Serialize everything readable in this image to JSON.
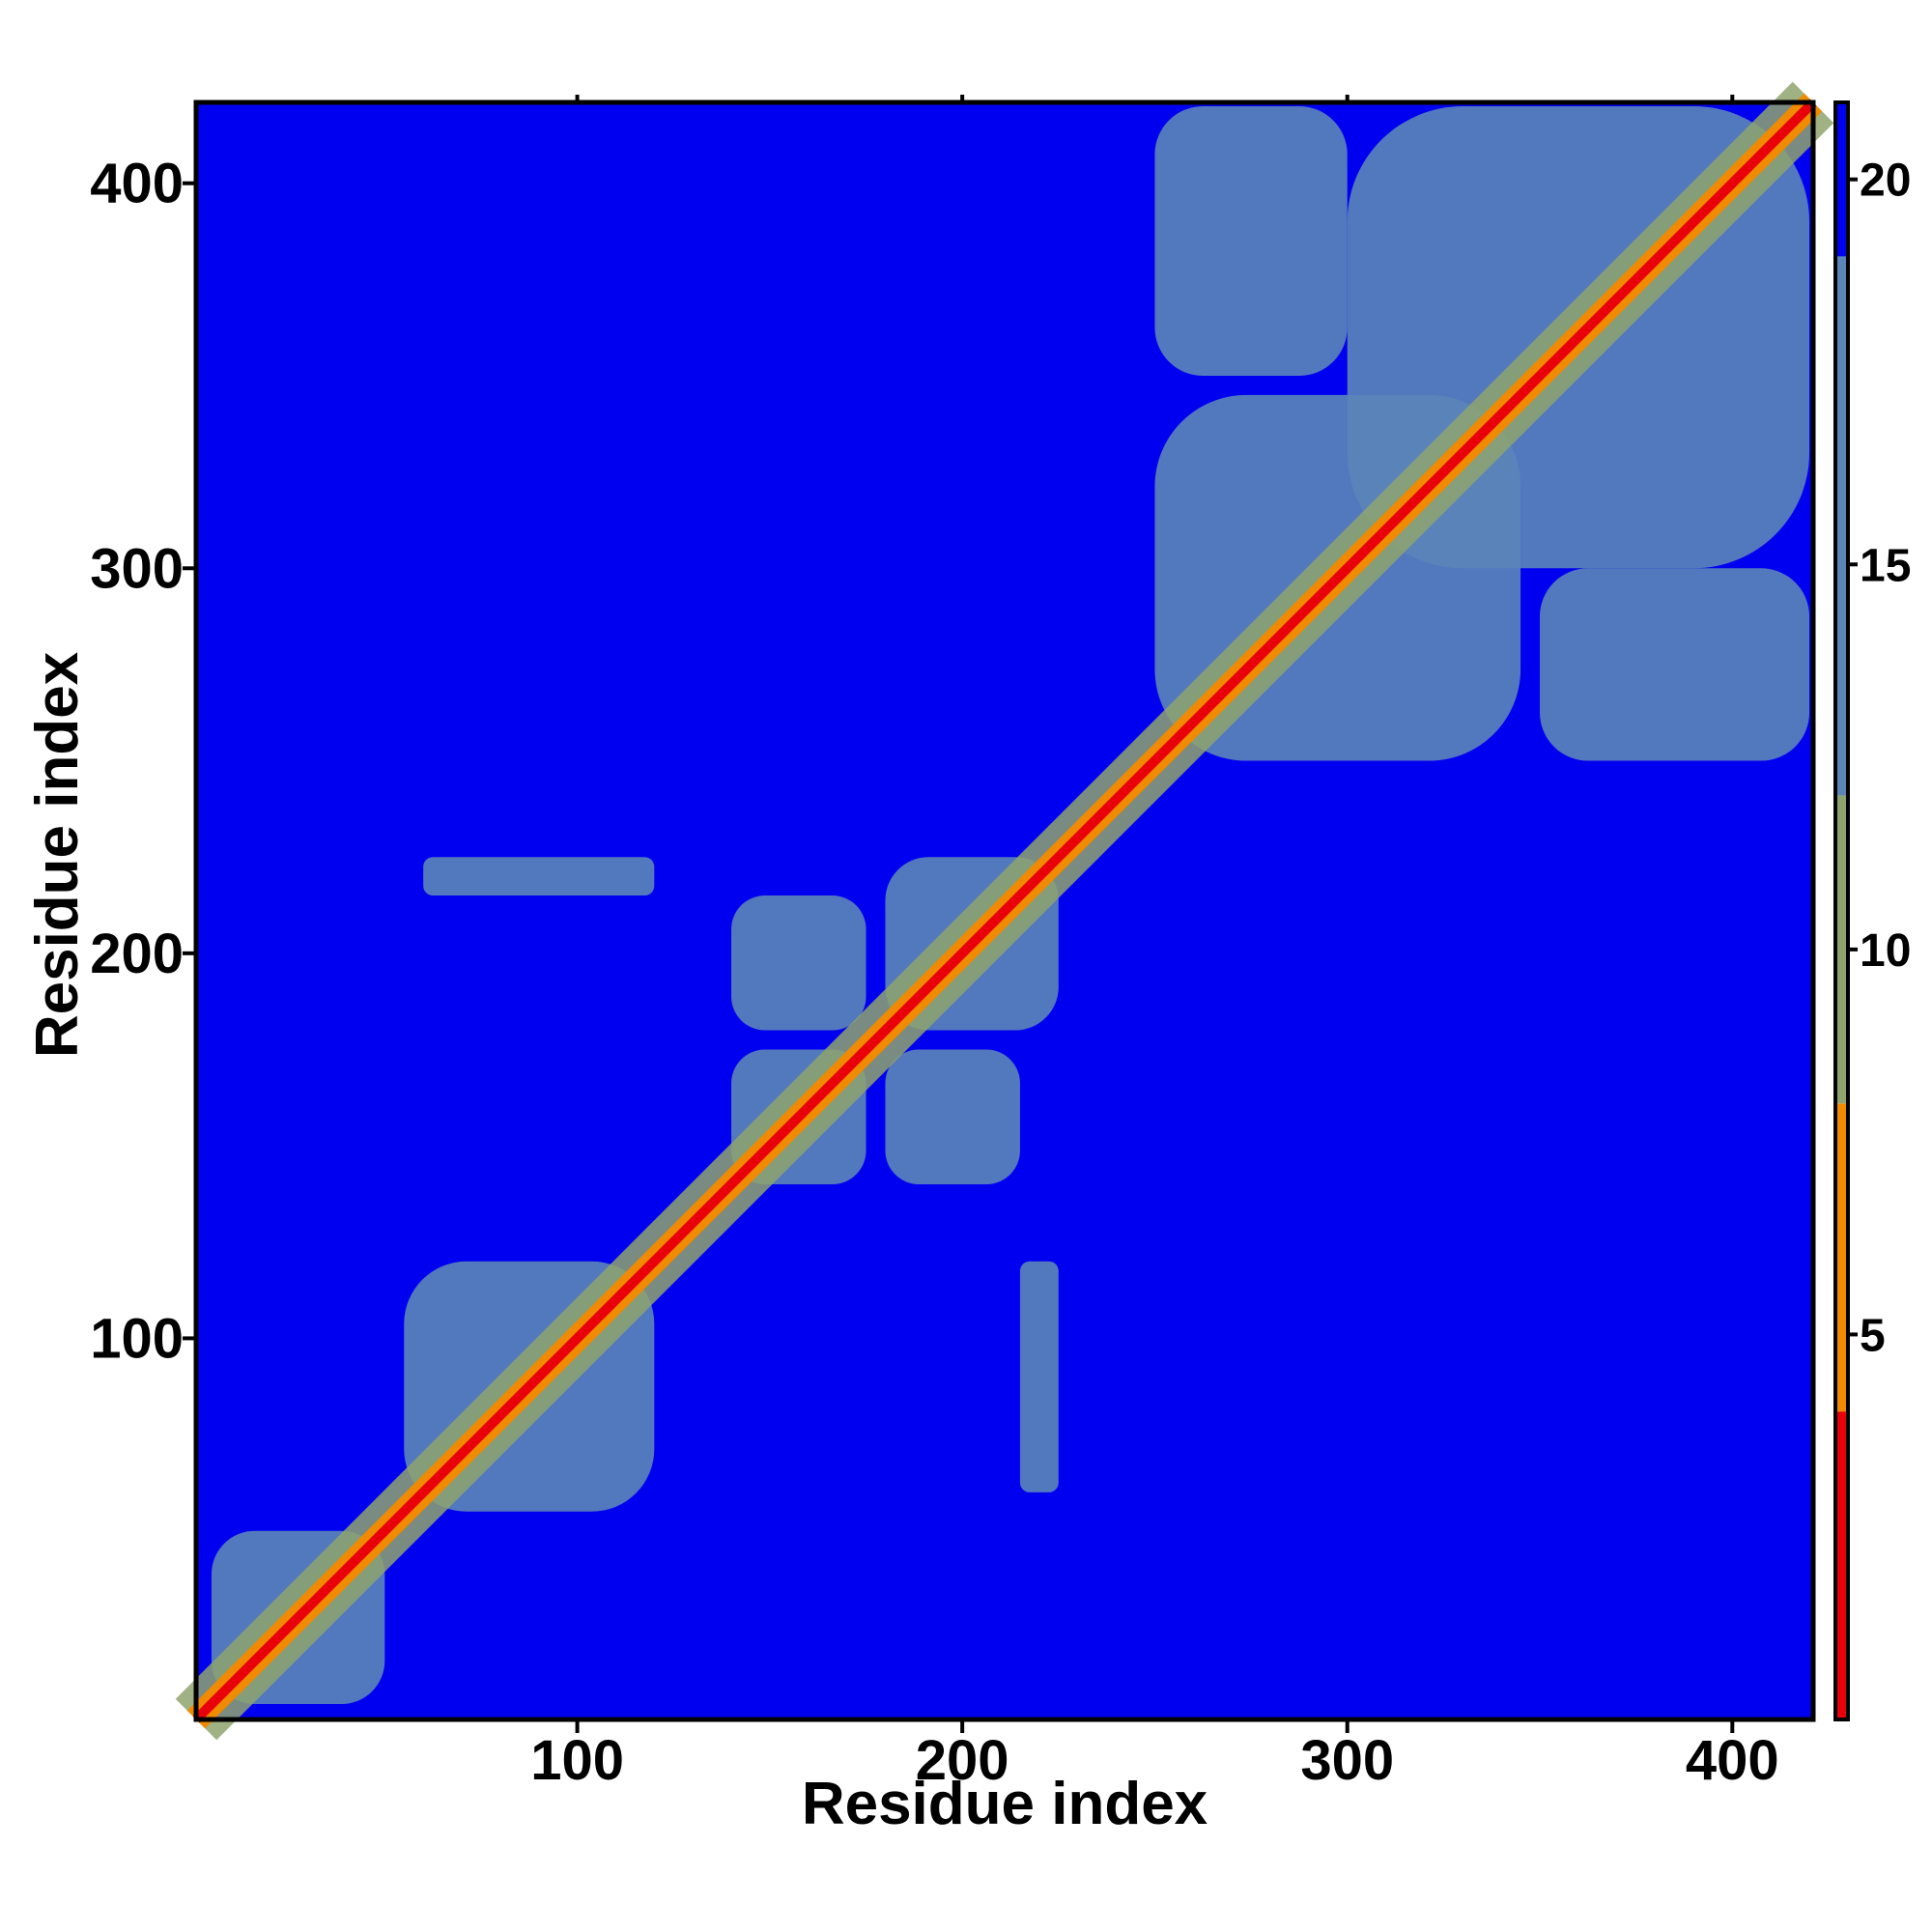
{
  "chart_data": {
    "type": "heatmap",
    "title": "",
    "xlabel": "Residue index",
    "ylabel": "Residue index",
    "xlim": [
      1,
      421
    ],
    "ylim": [
      1,
      421
    ],
    "x_ticks": [
      100,
      200,
      300,
      400
    ],
    "y_ticks": [
      100,
      200,
      300,
      400
    ],
    "x_tick_labels": [
      "100",
      "200",
      "300",
      "400"
    ],
    "y_tick_labels": [
      "100",
      "200",
      "300",
      "400"
    ],
    "colorbar": {
      "range": [
        0,
        21
      ],
      "ticks": [
        5,
        10,
        15,
        20
      ],
      "tick_labels": [
        "5",
        "10",
        "15",
        "20"
      ],
      "colors": [
        {
          "from": 0,
          "to": 4,
          "color": "#e8000b"
        },
        {
          "from": 4,
          "to": 8,
          "color": "#f08a00"
        },
        {
          "from": 8,
          "to": 12,
          "color": "#8fa36e"
        },
        {
          "from": 12,
          "to": 19,
          "color": "#5b85b8"
        },
        {
          "from": 19,
          "to": 21,
          "color": "#0000f0"
        }
      ]
    },
    "background_value": 21,
    "diagonal": {
      "value": 2,
      "color": "#e8000b"
    },
    "contact_regions": [
      {
        "x": [
          5,
          50
        ],
        "y": [
          5,
          50
        ],
        "value": 14
      },
      {
        "x": [
          55,
          120
        ],
        "y": [
          55,
          120
        ],
        "value": 14
      },
      {
        "x": [
          140,
          175
        ],
        "y": [
          140,
          175
        ],
        "value": 14
      },
      {
        "x": [
          180,
          225
        ],
        "y": [
          180,
          225
        ],
        "value": 14
      },
      {
        "x": [
          250,
          345
        ],
        "y": [
          250,
          345
        ],
        "value": 14
      },
      {
        "x": [
          300,
          420
        ],
        "y": [
          300,
          420
        ],
        "value": 14
      },
      {
        "x": [
          250,
          300
        ],
        "y": [
          350,
          420
        ],
        "value": 14
      },
      {
        "x": [
          350,
          420
        ],
        "y": [
          250,
          300
        ],
        "value": 14
      },
      {
        "x": [
          60,
          120
        ],
        "y": [
          215,
          225
        ],
        "value": 15
      },
      {
        "x": [
          215,
          225
        ],
        "y": [
          60,
          120
        ],
        "value": 15
      },
      {
        "x": [
          140,
          175
        ],
        "y": [
          180,
          215
        ],
        "value": 16
      },
      {
        "x": [
          180,
          215
        ],
        "y": [
          140,
          175
        ],
        "value": 16
      }
    ]
  },
  "colors": {
    "background": "#0000f0",
    "frame": "#000000",
    "plot_surround": "#ffffff"
  }
}
